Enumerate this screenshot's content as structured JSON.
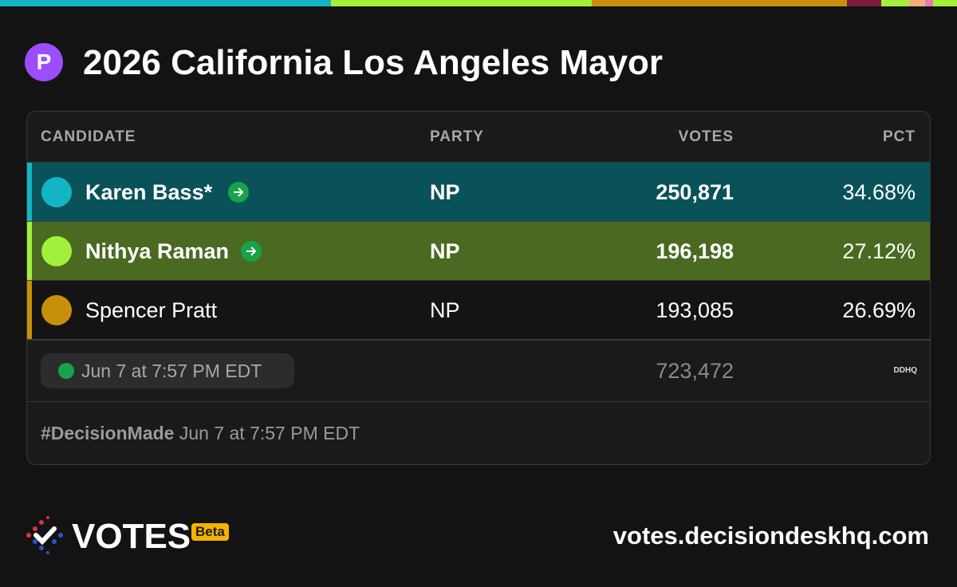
{
  "header": {
    "badge": "P",
    "title": "2026 California Los Angeles Mayor"
  },
  "table": {
    "headers": [
      "CANDIDATE",
      "PARTY",
      "VOTES",
      "PCT"
    ],
    "rows": [
      {
        "name": "Karen Bass*",
        "party": "NP",
        "votes": "250,871",
        "pct": "34.68%"
      },
      {
        "name": "Nithya Raman",
        "party": "NP",
        "votes": "196,198",
        "pct": "27.12%"
      },
      {
        "name": "Spencer Pratt",
        "party": "NP",
        "votes": "193,085",
        "pct": "26.69%"
      }
    ],
    "footer": {
      "updated": "Jun 7 at 7:57 PM EDT",
      "total": "723,472",
      "source": "DDHQ"
    },
    "note": {
      "tag": "#DecisionMade",
      "time": "Jun 7 at 7:57 PM EDT"
    }
  },
  "brand": {
    "name": "VOTES",
    "badge": "Beta",
    "url": "votes.decisiondeskhq.com"
  }
}
